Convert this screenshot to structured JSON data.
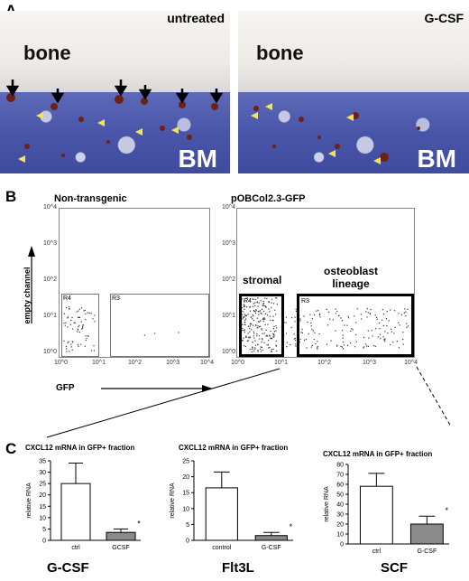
{
  "panel_a": {
    "letter": "A",
    "left": {
      "condition": "untreated",
      "bone_label": "bone",
      "bm_label": "BM"
    },
    "right": {
      "condition": "G-CSF",
      "bone_label": "bone",
      "bm_label": "BM"
    }
  },
  "panel_b": {
    "letter": "B",
    "y_axis_label": "empty channel",
    "x_axis_label": "GFP",
    "tick_labels": [
      "10^0",
      "10^1",
      "10^2",
      "10^3",
      "10^4"
    ],
    "left_plot": {
      "title": "Non-transgenic",
      "gates": [
        "R4",
        "R3"
      ]
    },
    "right_plot": {
      "title": "pOBCol2.3-GFP",
      "gates": [
        "R4",
        "R3"
      ],
      "annotations": [
        "stromal",
        "osteoblast\nlineage"
      ]
    }
  },
  "panel_c": {
    "letter": "C",
    "charts": [
      {
        "title": "CXCL12 mRNA in GFP+ fraction",
        "ylabel": "relative RNA",
        "categories": [
          "ctrl",
          "GCSF"
        ],
        "values": [
          25,
          3.5
        ],
        "errors": [
          9,
          1.5
        ],
        "ylim": [
          0,
          35
        ],
        "yticks": [
          0,
          5,
          10,
          15,
          20,
          25,
          30,
          35
        ],
        "sig": "*",
        "bottom_label": "G-CSF"
      },
      {
        "title": "CXCL12 mRNA in GFP+ fraction",
        "ylabel": "relative RNA",
        "categories": [
          "control",
          "G-CSF"
        ],
        "values": [
          16.5,
          1.5
        ],
        "errors": [
          5,
          1
        ],
        "ylim": [
          0,
          25
        ],
        "yticks": [
          0,
          5,
          10,
          15,
          20,
          25
        ],
        "sig": "*",
        "bottom_label": "Flt3L"
      },
      {
        "title": "CXCL12 mRNA in GFP+ fraction",
        "ylabel": "relative RNA",
        "categories": [
          "ctrl",
          "G-CSF"
        ],
        "values": [
          58,
          20
        ],
        "errors": [
          13,
          8
        ],
        "ylim": [
          0,
          80
        ],
        "yticks": [
          0,
          10,
          20,
          30,
          40,
          50,
          60,
          70,
          80
        ],
        "sig": "*",
        "bottom_label": "SCF"
      }
    ]
  },
  "chart_data": [
    {
      "type": "bar",
      "title": "CXCL12 mRNA in GFP+ fraction",
      "ylabel": "relative RNA",
      "categories": [
        "ctrl",
        "GCSF"
      ],
      "values": [
        25,
        3.5
      ],
      "ylim": [
        0,
        35
      ]
    },
    {
      "type": "bar",
      "title": "CXCL12 mRNA in GFP+ fraction",
      "ylabel": "relative RNA",
      "categories": [
        "control",
        "G-CSF"
      ],
      "values": [
        16.5,
        1.5
      ],
      "ylim": [
        0,
        25
      ]
    },
    {
      "type": "bar",
      "title": "CXCL12 mRNA in GFP+ fraction",
      "ylabel": "relative RNA",
      "categories": [
        "ctrl",
        "G-CSF"
      ],
      "values": [
        58,
        20
      ],
      "ylim": [
        0,
        80
      ]
    }
  ],
  "colors": {
    "bar_ctrl": "#ffffff",
    "bar_treated": "#8a8a8a",
    "stain": "#6e2016",
    "arrow_yellow": "#f4e64a"
  }
}
